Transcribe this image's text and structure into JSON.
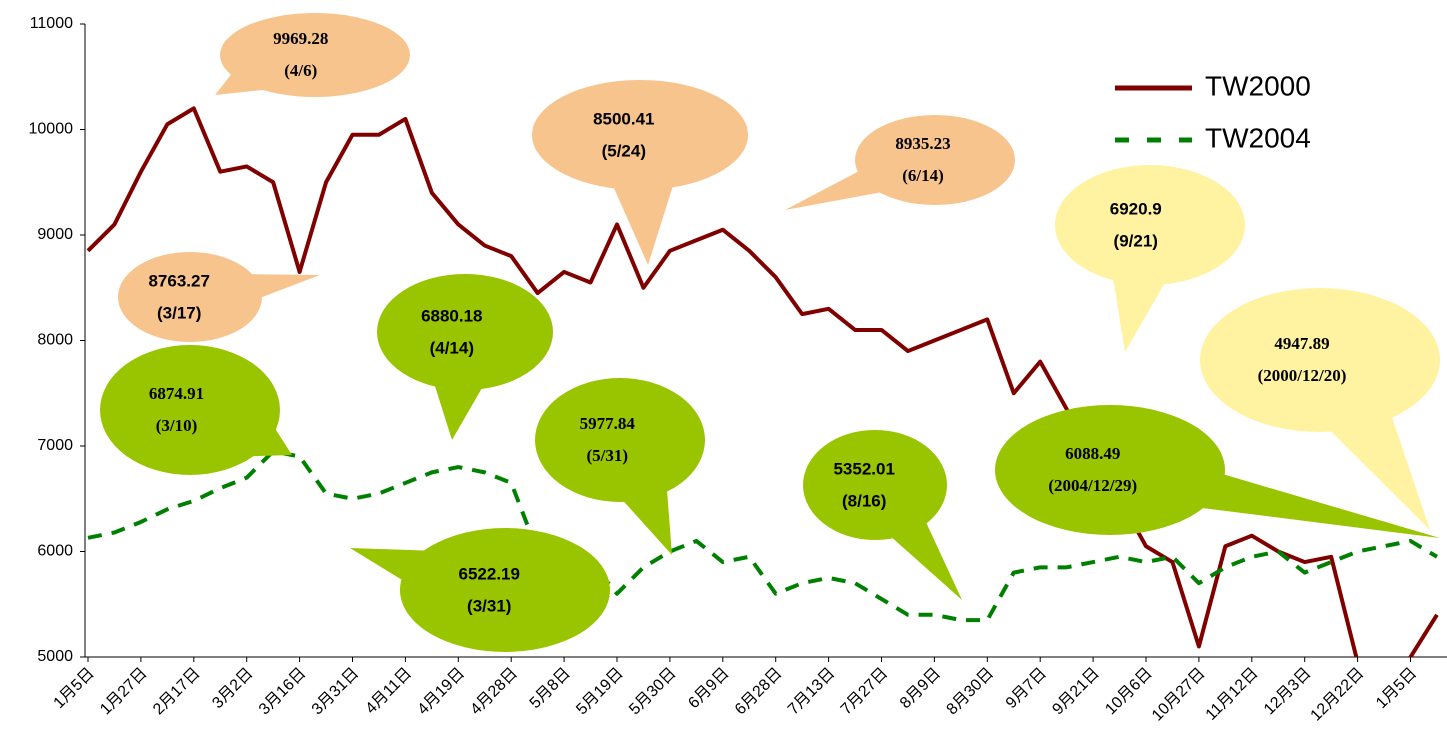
{
  "chart_data": {
    "type": "line",
    "categories": [
      "1月5日",
      null,
      "1月27日",
      null,
      "2月17日",
      null,
      "3月2日",
      null,
      "3月16日",
      null,
      "3月31日",
      null,
      "4月11日",
      null,
      "4月19日",
      null,
      "4月28日",
      null,
      "5月8日",
      null,
      "5月19日",
      null,
      "5月30日",
      null,
      "6月9日",
      null,
      "6月28日",
      null,
      "7月13日",
      null,
      "7月27日",
      null,
      "8月9日",
      null,
      "8月30日",
      null,
      "9月7日",
      null,
      "9月21日",
      null,
      "10月6日",
      null,
      "10月27日",
      null,
      "11月12日",
      null,
      "12月3日",
      null,
      "12月22日",
      null,
      "1月5日",
      null
    ],
    "series": [
      {
        "name": "TW2000",
        "color": "#800000",
        "dash": false,
        "values": [
          8850,
          9100,
          9600,
          10050,
          10200,
          9600,
          9650,
          9500,
          8650,
          9500,
          9950,
          9950,
          10100,
          9400,
          9100,
          8900,
          8800,
          8450,
          8650,
          8550,
          9100,
          8500,
          8850,
          8950,
          9050,
          8850,
          8600,
          8250,
          8300,
          8100,
          8100,
          7900,
          8000,
          8100,
          8200,
          7500,
          7800,
          7350,
          6900,
          6500,
          6050,
          5900,
          5100,
          6050,
          6150,
          6000,
          5900,
          5950,
          4950,
          4700,
          5000,
          5400
        ]
      },
      {
        "name": "TW2004",
        "color": "#008000",
        "dash": true,
        "values": [
          6130,
          6180,
          6280,
          6400,
          6480,
          6600,
          6700,
          6950,
          6900,
          6550,
          6500,
          6550,
          6650,
          6750,
          6800,
          6750,
          6650,
          6000,
          6100,
          5900,
          5600,
          5850,
          6000,
          6100,
          5900,
          5950,
          5600,
          5700,
          5750,
          5700,
          5550,
          5400,
          5400,
          5350,
          5350,
          5800,
          5850,
          5850,
          5900,
          5950,
          5900,
          5950,
          5700,
          5850,
          5950,
          6000,
          5800,
          5900,
          6000,
          6050,
          6100,
          5950
        ]
      }
    ],
    "ylim": [
      5000,
      11000
    ],
    "yticks": [
      5000,
      6000,
      7000,
      8000,
      9000,
      10000,
      11000
    ],
    "legend": "top-right",
    "annotations": [
      {
        "lines": [
          "9969.28",
          "(4/6)"
        ],
        "color": "#f8c48e"
      },
      {
        "lines": [
          "8763.27",
          "(3/17)"
        ],
        "color": "#f8c48e"
      },
      {
        "lines": [
          "8500.41",
          "(5/24)"
        ],
        "color": "#f8c48e"
      },
      {
        "lines": [
          "8935.23",
          "(6/14)"
        ],
        "color": "#f8c48e"
      },
      {
        "lines": [
          "6920.9",
          "(9/21)"
        ],
        "color": "#fff2a0"
      },
      {
        "lines": [
          "4947.89",
          "(2000/12/20)"
        ],
        "color": "#fff2a0"
      },
      {
        "lines": [
          "6874.91",
          "(3/10)"
        ],
        "color": "#99c400"
      },
      {
        "lines": [
          "6880.18",
          "(4/14)"
        ],
        "color": "#99c400"
      },
      {
        "lines": [
          "6522.19",
          "(3/31)"
        ],
        "color": "#99c400"
      },
      {
        "lines": [
          "5977.84",
          "(5/31)"
        ],
        "color": "#99c400"
      },
      {
        "lines": [
          "5352.01",
          "(8/16)"
        ],
        "color": "#99c400"
      },
      {
        "lines": [
          "6088.49",
          "(2004/12/29)"
        ],
        "color": "#99c400"
      }
    ]
  }
}
